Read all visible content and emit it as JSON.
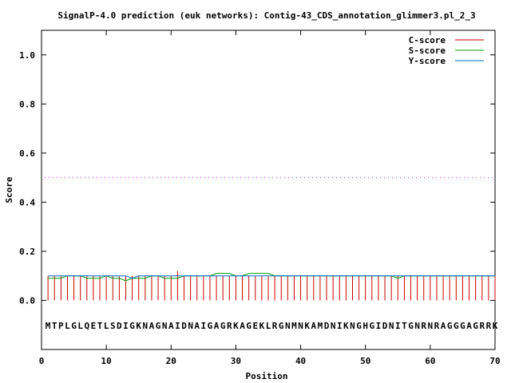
{
  "chart_data": {
    "type": "line",
    "title": "SignalP-4.0 prediction (euk networks): Contig-43_CDS_annotation_glimmer3.pl_2_3",
    "xlabel": "Position",
    "ylabel": "Score",
    "xlim": [
      0,
      70
    ],
    "ylim": [
      -0.2,
      1.1
    ],
    "x_ticks": [
      "0",
      "10",
      "20",
      "30",
      "40",
      "50",
      "60",
      "70"
    ],
    "y_ticks": [
      "0.0",
      "0.2",
      "0.4",
      "0.6",
      "0.8",
      "1.0"
    ],
    "threshold": 0.5,
    "threshold_color": "#ff00ff",
    "sequence": "MTPLGLQETLSDIGKNAGNAIDNAIGAGRKAGEKLRGNMNKAMDNIKNGHGIDNITGNRNRAGGGAGRRK",
    "legend_position": "top-right",
    "series": [
      {
        "name": "C-score",
        "color": "#cc0000",
        "style": "impulses",
        "values": [
          0.1,
          0.1,
          0.1,
          0.1,
          0.1,
          0.1,
          0.1,
          0.1,
          0.1,
          0.1,
          0.1,
          0.1,
          0.1,
          0.1,
          0.1,
          0.1,
          0.1,
          0.1,
          0.1,
          0.1,
          0.12,
          0.1,
          0.1,
          0.1,
          0.1,
          0.1,
          0.1,
          0.1,
          0.1,
          0.1,
          0.1,
          0.1,
          0.1,
          0.1,
          0.1,
          0.1,
          0.1,
          0.1,
          0.1,
          0.1,
          0.1,
          0.1,
          0.1,
          0.1,
          0.1,
          0.1,
          0.1,
          0.1,
          0.1,
          0.1,
          0.1,
          0.1,
          0.1,
          0.1,
          0.1,
          0.1,
          0.1,
          0.1,
          0.1,
          0.1,
          0.1,
          0.1,
          0.1,
          0.1,
          0.1,
          0.1,
          0.1,
          0.1,
          0.1,
          0.1
        ]
      },
      {
        "name": "S-score",
        "color": "#00a000",
        "style": "line",
        "values": [
          0.09,
          0.09,
          0.09,
          0.1,
          0.1,
          0.1,
          0.09,
          0.09,
          0.09,
          0.1,
          0.09,
          0.09,
          0.08,
          0.09,
          0.09,
          0.09,
          0.1,
          0.1,
          0.09,
          0.09,
          0.09,
          0.1,
          0.1,
          0.1,
          0.1,
          0.1,
          0.11,
          0.11,
          0.11,
          0.1,
          0.1,
          0.11,
          0.11,
          0.11,
          0.11,
          0.1,
          0.1,
          0.1,
          0.1,
          0.1,
          0.1,
          0.1,
          0.1,
          0.1,
          0.1,
          0.1,
          0.1,
          0.1,
          0.1,
          0.1,
          0.1,
          0.1,
          0.1,
          0.1,
          0.09,
          0.1,
          0.1,
          0.1,
          0.1,
          0.1,
          0.1,
          0.1,
          0.1,
          0.1,
          0.1,
          0.1,
          0.1,
          0.1,
          0.1,
          0.1
        ]
      },
      {
        "name": "Y-score",
        "color": "#0066cc",
        "style": "line",
        "values": [
          0.1,
          0.1,
          0.1,
          0.1,
          0.1,
          0.1,
          0.1,
          0.1,
          0.1,
          0.1,
          0.1,
          0.1,
          0.1,
          0.09,
          0.1,
          0.1,
          0.1,
          0.1,
          0.1,
          0.1,
          0.1,
          0.1,
          0.1,
          0.1,
          0.1,
          0.1,
          0.1,
          0.1,
          0.1,
          0.1,
          0.1,
          0.1,
          0.1,
          0.1,
          0.1,
          0.1,
          0.1,
          0.1,
          0.1,
          0.1,
          0.1,
          0.1,
          0.1,
          0.1,
          0.1,
          0.1,
          0.1,
          0.1,
          0.1,
          0.1,
          0.1,
          0.1,
          0.1,
          0.1,
          0.1,
          0.1,
          0.1,
          0.1,
          0.1,
          0.1,
          0.1,
          0.1,
          0.1,
          0.1,
          0.1,
          0.1,
          0.1,
          0.1,
          0.1,
          0.1
        ]
      }
    ]
  }
}
